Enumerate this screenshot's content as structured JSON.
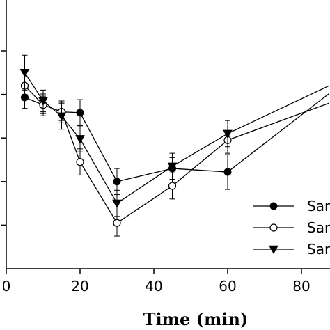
{
  "chart_data": {
    "type": "line",
    "xlabel": "Time (min)",
    "ylabel": "",
    "xlim": [
      0,
      87.5
    ],
    "ylim": [
      0,
      6
    ],
    "xticks": [
      0,
      20,
      40,
      60,
      80
    ],
    "yticks": [
      1,
      2,
      3,
      4,
      5
    ],
    "grid": false,
    "legend": {
      "placement": "bottom-right",
      "entries": [
        "Sar",
        "Sar",
        "Sar"
      ]
    },
    "x": [
      5,
      10,
      15,
      20,
      30,
      45,
      60
    ],
    "series": [
      {
        "name": "Sar",
        "marker": "filled-circle",
        "values": [
          3.93,
          3.76,
          3.6,
          3.58,
          2.0,
          2.3,
          2.22
        ],
        "errors": [
          0.25,
          0.2,
          0.25,
          0.3,
          0.3,
          0.25,
          0.4
        ],
        "continues_to": [
          87.5,
          4.02
        ]
      },
      {
        "name": "Sar",
        "marker": "open-circle",
        "values": [
          4.2,
          3.76,
          3.6,
          2.45,
          1.05,
          1.9,
          2.95
        ],
        "errors": [
          0.2,
          0.25,
          0.2,
          0.3,
          0.3,
          0.3,
          0.3
        ],
        "continues_to": [
          87.5,
          3.8
        ]
      },
      {
        "name": "Sar",
        "marker": "filled-triangle-down",
        "values": [
          4.5,
          3.85,
          3.5,
          2.98,
          1.5,
          2.35,
          3.1
        ],
        "errors": [
          0.4,
          0.25,
          0.3,
          0.3,
          0.3,
          0.3,
          0.3
        ],
        "continues_to": [
          87.5,
          4.2
        ]
      }
    ]
  }
}
